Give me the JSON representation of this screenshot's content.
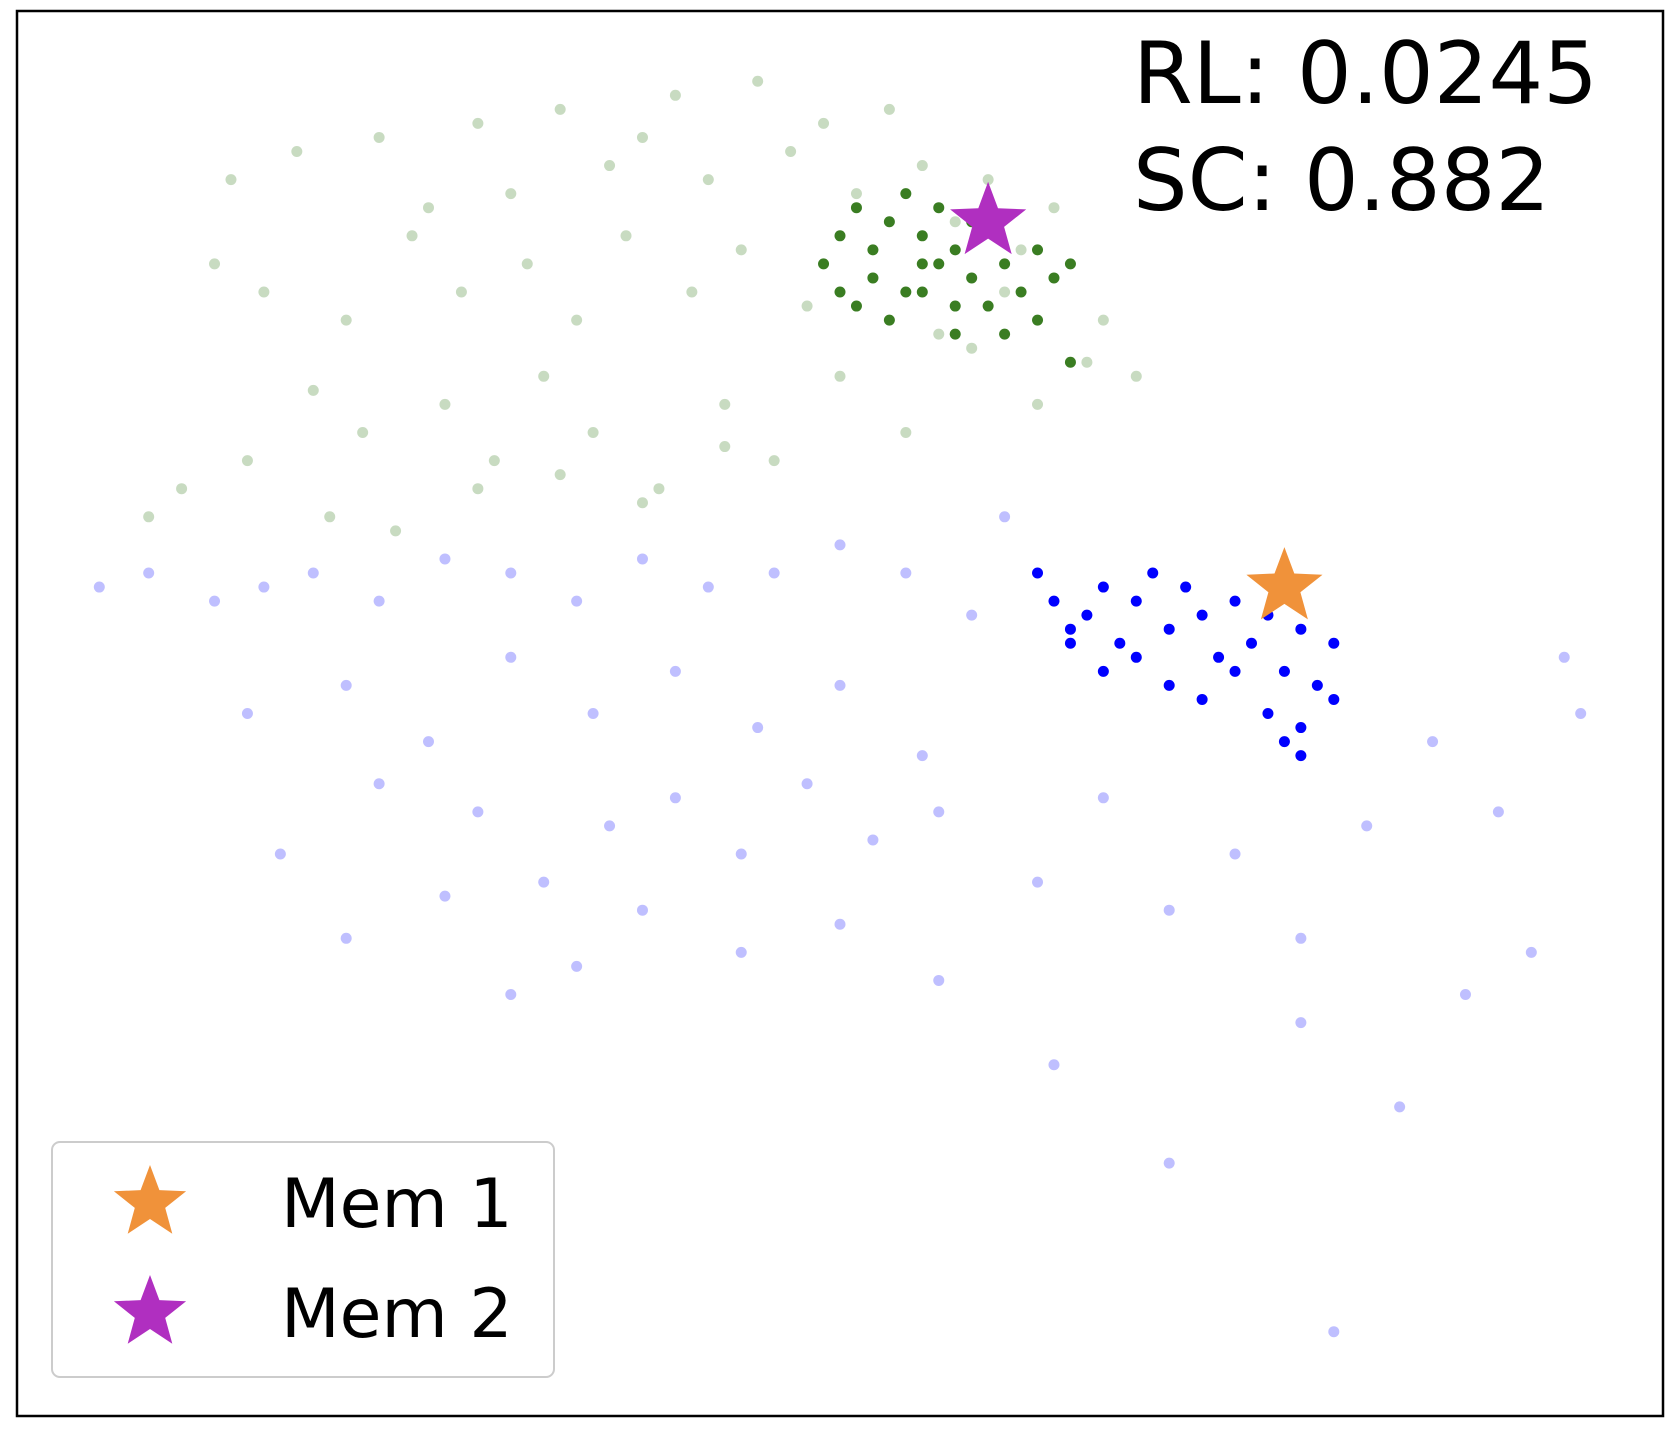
{
  "chart_data": {
    "type": "scatter",
    "annotations": [
      "RL: 0.0245",
      "SC: 0.882"
    ],
    "xlim": [
      0,
      100
    ],
    "ylim": [
      0,
      100
    ],
    "legend": "lower left",
    "series": [
      {
        "color": "#3a7d22",
        "opacity": 0.28,
        "x": [
          13,
          17,
          22,
          25,
          28,
          30,
          33,
          36,
          38,
          40,
          42,
          45,
          47,
          49,
          51,
          53,
          55,
          57,
          59,
          61,
          63,
          12,
          15,
          20,
          24,
          27,
          31,
          34,
          37,
          41,
          44,
          48,
          52,
          56,
          60,
          18,
          21,
          26,
          29,
          32,
          35,
          39,
          43,
          46,
          50,
          54,
          58,
          62,
          65,
          68,
          8,
          10,
          14,
          19,
          23,
          28,
          33,
          38,
          43,
          66
        ],
        "values": [
          88,
          90,
          91,
          86,
          92,
          87,
          93,
          89,
          91,
          94,
          88,
          95,
          90,
          92,
          87,
          93,
          89,
          85,
          88,
          83,
          86,
          82,
          80,
          78,
          84,
          80,
          82,
          78,
          84,
          80,
          83,
          79,
          81,
          77,
          80,
          73,
          70,
          72,
          68,
          74,
          70,
          66,
          72,
          68,
          74,
          70,
          76,
          72,
          75,
          74,
          64,
          66,
          68,
          64,
          63,
          66,
          67,
          65,
          69,
          78
        ]
      },
      {
        "color": "#3a7d22",
        "opacity": 1,
        "x": [
          49,
          50,
          51,
          52,
          53,
          54,
          55,
          56,
          57,
          58,
          50,
          52,
          54,
          56,
          58,
          60,
          62,
          51,
          53,
          55,
          57,
          59,
          61,
          63,
          64,
          57,
          60,
          62,
          55,
          64
        ],
        "values": [
          82,
          84,
          86,
          83,
          85,
          87,
          84,
          86,
          83,
          85,
          80,
          81,
          80,
          82,
          81,
          82,
          83,
          79,
          78,
          80,
          79,
          79,
          80,
          81,
          82,
          77,
          77,
          78,
          82,
          75
        ]
      },
      {
        "color": "#0000ff",
        "opacity": 0.25,
        "x": [
          5,
          8,
          12,
          15,
          18,
          22,
          26,
          30,
          34,
          38,
          42,
          46,
          50,
          54,
          58,
          60,
          14,
          20,
          25,
          30,
          35,
          40,
          45,
          50,
          55,
          16,
          22,
          28,
          32,
          36,
          40,
          44,
          48,
          52,
          56,
          20,
          26,
          30,
          34,
          38,
          44,
          50,
          56,
          62,
          66,
          70,
          74,
          78,
          82,
          86,
          90,
          94,
          63,
          70,
          78,
          84,
          88,
          92,
          95,
          80
        ],
        "values": [
          59,
          60,
          58,
          59,
          60,
          58,
          61,
          60,
          58,
          61,
          59,
          60,
          62,
          60,
          57,
          64,
          50,
          52,
          48,
          54,
          50,
          53,
          49,
          52,
          47,
          40,
          45,
          43,
          38,
          42,
          44,
          40,
          45,
          41,
          43,
          34,
          37,
          30,
          32,
          36,
          33,
          35,
          31,
          38,
          44,
          36,
          40,
          34,
          42,
          48,
          43,
          54,
          25,
          18,
          28,
          22,
          30,
          33,
          50,
          6
        ]
      },
      {
        "color": "#0000ff",
        "opacity": 1,
        "x": [
          62,
          63,
          64,
          65,
          66,
          67,
          68,
          69,
          70,
          71,
          72,
          73,
          74,
          75,
          76,
          77,
          78,
          79,
          80,
          64,
          66,
          68,
          70,
          72,
          74,
          76,
          78,
          80,
          77,
          78
        ],
        "values": [
          60,
          58,
          56,
          57,
          59,
          55,
          58,
          60,
          56,
          59,
          57,
          54,
          58,
          55,
          57,
          53,
          56,
          52,
          55,
          55,
          53,
          54,
          52,
          51,
          53,
          50,
          49,
          51,
          48,
          47
        ]
      }
    ],
    "markers": [
      {
        "name": "Mem 1",
        "color": "#f0923a",
        "x": 77,
        "y": 59
      },
      {
        "name": "Mem 2",
        "color": "#b02fc0",
        "x": 59,
        "y": 85
      }
    ]
  }
}
